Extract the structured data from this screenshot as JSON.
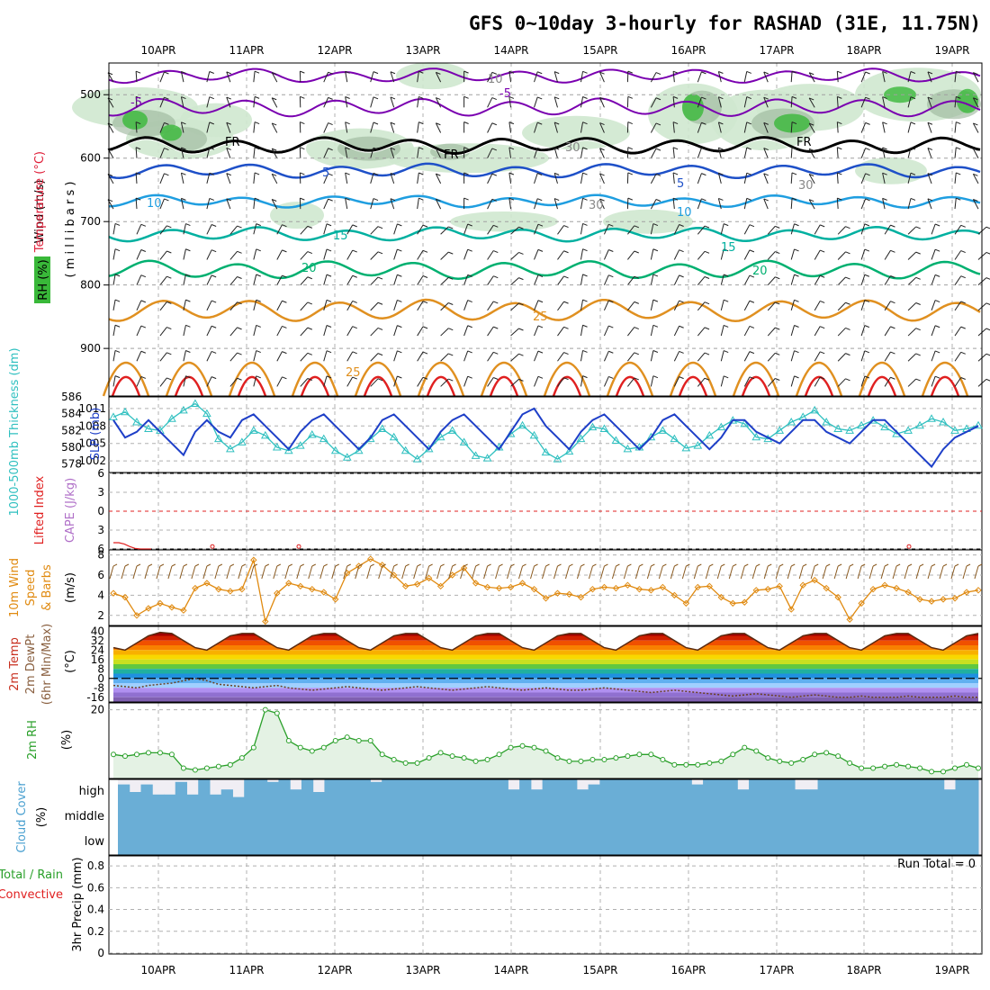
{
  "title": "GFS 0~10day 3-hourly for RASHAD (31E, 11.75N)",
  "dates": [
    "10APR",
    "11APR",
    "12APR",
    "13APR",
    "14APR",
    "15APR",
    "16APR",
    "17APR",
    "18APR",
    "19APR"
  ],
  "colors": {
    "temp_cold": "#7a00b0",
    "freeze": "#000000",
    "blue": "#1e50c8",
    "cyan": "#1f9ee0",
    "teal": "#00b0a0",
    "green": "#00b070",
    "orange": "#e09020",
    "red": "#e02020",
    "rh_light": "#cfe8cf",
    "rh_mid": "#9ad89a",
    "rh_dark": "#39b839",
    "slp": "#1e3fc8",
    "thick": "#30c0c0",
    "wind": "#e08a10",
    "rh2m": "#2aa02a",
    "cloud": "#6aaed6",
    "precip_axis": "#000000"
  },
  "panels": {
    "upper": {
      "ylabel_wind": "Wind (m/s)",
      "ylabel_temp": "Temperature (°C)",
      "ylabel_mb": "( m i l l i b a r s )",
      "rh_label": "RH (%)",
      "yticks": [
        "500",
        "600",
        "700",
        "800",
        "900"
      ],
      "contour_labels": [
        {
          "text": "-5",
          "c": "temp_cold"
        },
        {
          "text": "-5",
          "c": "temp_cold"
        },
        {
          "text": "FR",
          "c": "freeze"
        },
        {
          "text": "FR",
          "c": "freeze"
        },
        {
          "text": "FR",
          "c": "freeze"
        },
        {
          "text": "5",
          "c": "blue"
        },
        {
          "text": "5",
          "c": "blue"
        },
        {
          "text": "10",
          "c": "cyan"
        },
        {
          "text": "10",
          "c": "cyan"
        },
        {
          "text": "15",
          "c": "teal"
        },
        {
          "text": "15",
          "c": "teal"
        },
        {
          "text": "20",
          "c": "green"
        },
        {
          "text": "20",
          "c": "green"
        },
        {
          "text": "25",
          "c": "orange"
        },
        {
          "text": "25",
          "c": "orange"
        },
        {
          "text": "10",
          "c": "gray"
        },
        {
          "text": "30",
          "c": "gray"
        },
        {
          "text": "30",
          "c": "gray"
        },
        {
          "text": "30",
          "c": "gray"
        }
      ]
    },
    "slp": {
      "ylabel_left": "1000-500mb Thickness (dm)",
      "ylabel_right": "SLP (mb)",
      "left_ticks": [
        "586",
        "584",
        "582",
        "580",
        "578"
      ],
      "right_ticks": [
        "1011",
        "1008",
        "1005",
        "1002"
      ]
    },
    "li": {
      "ylabel_a": "Lifted Index",
      "ylabel_b": "CAPE (J/kg)",
      "ticks": [
        "6",
        "3",
        "0",
        "3",
        "6"
      ]
    },
    "wind10": {
      "ylabel_a": "10m Wind",
      "ylabel_b": "Speed",
      "ylabel_c": "& Barbs",
      "unit": "(m/s)",
      "ticks": [
        "8",
        "6",
        "4",
        "2"
      ]
    },
    "temp2m": {
      "ylabel_a": "2m Temp",
      "ylabel_b": "2m DewPt",
      "ylabel_c": "(6hr Min/Max)",
      "unit": "(°C)",
      "ticks": [
        "40",
        "32",
        "24",
        "16",
        "8",
        "0",
        "-8",
        "-16"
      ]
    },
    "rh2m": {
      "ylabel": "2m RH",
      "unit": "(%)",
      "ticks": [
        "20"
      ]
    },
    "cloud": {
      "ylabel": "Cloud Cover",
      "unit": "(%)",
      "levels": [
        "high",
        "middle",
        "low"
      ]
    },
    "precip": {
      "ylabel_a": "Total / Rain",
      "ylabel_b": "Convective",
      "unit": "3hr Precip (mm)",
      "ticks": [
        "0.8",
        "0.6",
        "0.4",
        "0.2",
        "0"
      ],
      "run_total": "Run Total = 0"
    }
  },
  "chart_data": [
    {
      "type": "line",
      "title": "GFS 0~10day 3-hourly for RASHAD (31E, 11.75N)",
      "ylabel": "Temperature (°C) / Wind (m/s) / RH (%)",
      "y_axis": "millibars",
      "ylim": [
        450,
        975
      ],
      "contours": {
        "freezing_level_mb": 580,
        "isotherm_5_mb": 620,
        "isotherm_10_mb": 668,
        "isotherm_15_mb": 720,
        "isotherm_20_mb": 776,
        "isotherm_25_mb": 840
      }
    },
    {
      "type": "line",
      "series": [
        {
          "name": "SLP (mb)",
          "values": [
            1009,
            1006,
            1007,
            1009,
            1007,
            1005,
            1003,
            1007,
            1009,
            1007,
            1006,
            1009,
            1010,
            1008,
            1006,
            1004,
            1007,
            1009,
            1010,
            1008,
            1006,
            1004,
            1006,
            1009,
            1010,
            1008,
            1006,
            1004,
            1007,
            1009,
            1010,
            1008,
            1006,
            1004,
            1007,
            1010,
            1011,
            1008,
            1006,
            1004,
            1007,
            1009,
            1010,
            1008,
            1006,
            1004,
            1006,
            1009,
            1010,
            1008,
            1006,
            1004,
            1006,
            1009,
            1009,
            1007,
            1006,
            1005,
            1007,
            1009,
            1009,
            1007,
            1006,
            1005,
            1007,
            1009,
            1009,
            1007,
            1005,
            1003,
            1001,
            1004,
            1006,
            1007,
            1008
          ]
        },
        {
          "name": "1000-500mb Thickness (dm)",
          "values": [
            583.6,
            584.2,
            583.0,
            582.2,
            582.0,
            583.4,
            584.4,
            585.2,
            584.0,
            581.0,
            579.8,
            580.6,
            582.0,
            581.4,
            580.0,
            579.6,
            580.2,
            581.5,
            581.0,
            579.6,
            578.8,
            579.6,
            581.0,
            582.2,
            581.2,
            579.6,
            578.6,
            579.8,
            581.2,
            582.0,
            580.6,
            579.0,
            578.7,
            580.0,
            581.6,
            582.6,
            581.4,
            579.4,
            578.6,
            579.5,
            581.0,
            582.4,
            582.2,
            580.8,
            579.8,
            580.0,
            581.2,
            582.0,
            581.0,
            579.9,
            580.2,
            581.4,
            582.4,
            583.2,
            582.8,
            581.2,
            581.0,
            582.0,
            583.0,
            583.6,
            584.4,
            583.0,
            582.2,
            582.0,
            582.6,
            583.2,
            582.4,
            581.6,
            582.0,
            582.6,
            583.4,
            583.0,
            582.0,
            582.2,
            582.6
          ]
        }
      ],
      "right_axis_ylim": [
        1000,
        1013
      ],
      "left_axis_ylim": [
        577,
        586
      ]
    },
    {
      "type": "line",
      "ylabel": "Lifted Index / CAPE (J/kg)",
      "ylim": [
        -6,
        6
      ],
      "series": [
        {
          "name": "Lifted Index",
          "values": [
            5.0,
            5.0,
            5.2,
            5.6,
            5.9,
            6.0,
            6.0,
            6.0
          ]
        }
      ]
    },
    {
      "type": "line",
      "ylabel": "10m Wind Speed & Barbs (m/s)",
      "ylim": [
        1,
        8.5
      ],
      "series": [
        {
          "name": "10m Wind Speed",
          "values": [
            4.2,
            3.8,
            2.0,
            2.7,
            3.2,
            2.8,
            2.5,
            4.7,
            5.2,
            4.6,
            4.4,
            4.6,
            7.5,
            1.4,
            4.2,
            5.2,
            4.9,
            4.6,
            4.3,
            3.6,
            6.2,
            6.9,
            7.6,
            7.0,
            6.0,
            4.9,
            5.1,
            5.7,
            4.9,
            6.0,
            6.7,
            5.2,
            4.8,
            4.7,
            4.8,
            5.2,
            4.6,
            3.7,
            4.2,
            4.1,
            3.8,
            4.6,
            4.8,
            4.7,
            5.0,
            4.6,
            4.5,
            4.8,
            4.0,
            3.2,
            4.8,
            4.9,
            3.8,
            3.2,
            3.3,
            4.5,
            4.6,
            4.9,
            2.6,
            5.0,
            5.5,
            4.7,
            3.8,
            1.6,
            3.2,
            4.6,
            5.0,
            4.7,
            4.3,
            3.6,
            3.4,
            3.6,
            3.7,
            4.3,
            4.5
          ]
        }
      ]
    },
    {
      "type": "area",
      "ylabel": "2m Temp / 2m DewPt (°C)",
      "ylim": [
        -20,
        44
      ],
      "series": [
        {
          "name": "2m Temp",
          "values": [
            26,
            24,
            30,
            36,
            39,
            38,
            32,
            26,
            24,
            30,
            36,
            38,
            38,
            32,
            26,
            24,
            30,
            36,
            38,
            38,
            32,
            26,
            24,
            30,
            36,
            38,
            38,
            32,
            26,
            24,
            30,
            36,
            38,
            38,
            32,
            26,
            24,
            30,
            36,
            38,
            38,
            32,
            26,
            24,
            30,
            36,
            38,
            38,
            32,
            26,
            24,
            30,
            36,
            38,
            38,
            32,
            26,
            24,
            30,
            36,
            38,
            38,
            32,
            26,
            24,
            30,
            36,
            38,
            38,
            32,
            26,
            24,
            30,
            36,
            38
          ]
        },
        {
          "name": "2m DewPt",
          "values": [
            -6,
            -7,
            -8,
            -6,
            -5,
            -4,
            -2,
            0,
            -2,
            -5,
            -6,
            -7,
            -8,
            -7,
            -6,
            -8,
            -9,
            -10,
            -9,
            -8,
            -7,
            -8,
            -9,
            -10,
            -9,
            -8,
            -7,
            -8,
            -9,
            -10,
            -9,
            -8,
            -7,
            -8,
            -9,
            -10,
            -9,
            -8,
            -9,
            -10,
            -10,
            -9,
            -8,
            -9,
            -10,
            -11,
            -12,
            -11,
            -10,
            -11,
            -12,
            -13,
            -14,
            -15,
            -14,
            -13,
            -14,
            -15,
            -16,
            -15,
            -14,
            -15,
            -16,
            -16,
            -15,
            -16,
            -16,
            -16,
            -15,
            -16,
            -16,
            -16,
            -15,
            -16,
            -16
          ]
        }
      ]
    },
    {
      "type": "area",
      "ylabel": "2m RH (%)",
      "ylim": [
        0,
        22
      ],
      "series": [
        {
          "name": "2m RH",
          "values": [
            7,
            6.5,
            7,
            7.5,
            7.5,
            7,
            3,
            2.5,
            3,
            3.5,
            4,
            6,
            9,
            20,
            19,
            11,
            9,
            8,
            9,
            11,
            12,
            11,
            11,
            7,
            5.5,
            4.5,
            4.5,
            6,
            7.5,
            6.5,
            6,
            5,
            5.5,
            7,
            9,
            9.5,
            9,
            8,
            6,
            5,
            5,
            5.5,
            5.5,
            6,
            6.5,
            7,
            7,
            5.5,
            4,
            4,
            4,
            4.5,
            5,
            7,
            9,
            8,
            6,
            5,
            4.5,
            5.5,
            7,
            7.5,
            6.5,
            4.5,
            3,
            3,
            3.5,
            4,
            3.5,
            3,
            2,
            2,
            3,
            4,
            3
          ]
        }
      ]
    },
    {
      "type": "bar",
      "ylabel": "Cloud Cover (%)",
      "series": [
        {
          "name": "high",
          "values": [
            80,
            50,
            80,
            40,
            40,
            90,
            40,
            100,
            40,
            60,
            30,
            100,
            100,
            90,
            100,
            60,
            100,
            50,
            100,
            100,
            100,
            100,
            90,
            100,
            100,
            100,
            100,
            100,
            100,
            100,
            100,
            100,
            100,
            100,
            60,
            100,
            60,
            100,
            100,
            100,
            60,
            80,
            100,
            100,
            100,
            100,
            100,
            100,
            100,
            100,
            80,
            100,
            100,
            100,
            60,
            100,
            100,
            100,
            100,
            60,
            60,
            100,
            100,
            100,
            100,
            100,
            100,
            100,
            100,
            100,
            100,
            100,
            60,
            100,
            100
          ]
        },
        {
          "name": "middle",
          "values": [
            100,
            100,
            100,
            100,
            100,
            100,
            100,
            100,
            100,
            100,
            100,
            100,
            100,
            100,
            100,
            100,
            100,
            100,
            100,
            100,
            100,
            100,
            100,
            100,
            100,
            100,
            100,
            100,
            100,
            100,
            100,
            100,
            100,
            100,
            100,
            100,
            100,
            100,
            100,
            100,
            100,
            100,
            100,
            100,
            100,
            100,
            100,
            100,
            100,
            100,
            100,
            100,
            100,
            100,
            100,
            100,
            100,
            100,
            100,
            100,
            100,
            100,
            100,
            100,
            100,
            100,
            100,
            100,
            100,
            100,
            100,
            100,
            100,
            100,
            100
          ]
        },
        {
          "name": "low",
          "values": [
            100,
            100,
            100,
            100,
            100,
            100,
            100,
            100,
            100,
            100,
            100,
            100,
            100,
            100,
            100,
            100,
            100,
            100,
            100,
            100,
            100,
            100,
            100,
            100,
            100,
            100,
            100,
            100,
            100,
            100,
            100,
            100,
            100,
            100,
            100,
            100,
            100,
            100,
            100,
            100,
            100,
            100,
            100,
            100,
            100,
            100,
            100,
            100,
            100,
            100,
            100,
            100,
            100,
            100,
            100,
            100,
            100,
            100,
            100,
            100,
            100,
            100,
            100,
            100,
            100,
            100,
            100,
            100,
            100,
            100,
            100,
            100,
            100,
            100,
            100
          ]
        }
      ]
    },
    {
      "type": "bar",
      "ylabel": "3hr Precip (mm)",
      "ylim": [
        0,
        0.9
      ],
      "series": [
        {
          "name": "Total / Rain",
          "values": [
            0,
            0,
            0,
            0,
            0,
            0,
            0,
            0,
            0,
            0
          ]
        }
      ]
    }
  ]
}
